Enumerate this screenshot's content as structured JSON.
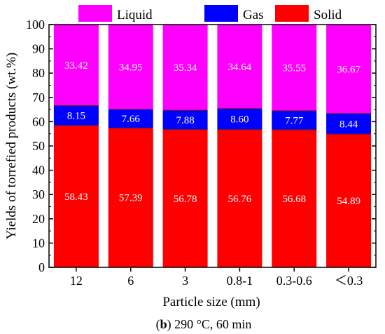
{
  "chart_data": {
    "type": "bar",
    "stacked": true,
    "categories": [
      "12",
      "6",
      "3",
      "0.8-1",
      "0.3-0.6",
      "＜0.3"
    ],
    "series": [
      {
        "name": "Solid",
        "color": "#ff0000",
        "values": [
          58.43,
          57.39,
          56.78,
          56.76,
          56.68,
          54.89
        ]
      },
      {
        "name": "Gas",
        "color": "#0000ff",
        "values": [
          8.15,
          7.66,
          7.88,
          8.6,
          7.77,
          8.44
        ]
      },
      {
        "name": "Liquid",
        "color": "#ff00ff",
        "values": [
          33.42,
          34.95,
          35.34,
          34.64,
          35.55,
          36.67
        ]
      }
    ],
    "value_labels": {
      "Solid": [
        "58.43",
        "57.39",
        "56.78",
        "56.76",
        "56.68",
        "54.89"
      ],
      "Gas": [
        "8.15",
        "7.66",
        "7.88",
        "8.60",
        "7.77",
        "8.44"
      ],
      "Liquid": [
        "33.42",
        "34.95",
        "35.34",
        "34.64",
        "35.55",
        "36.67"
      ]
    },
    "xlabel": "Particle size (mm)",
    "ylabel": "Yields of torrefied products (wt.%)",
    "ylim": [
      0,
      100
    ],
    "yticks": [
      0,
      10,
      20,
      30,
      40,
      50,
      60,
      70,
      80,
      90,
      100
    ],
    "legend": {
      "position": "top",
      "order": [
        "Liquid",
        "Gas",
        "Solid"
      ]
    },
    "grid": false,
    "caption": {
      "bold": "b",
      "text": " 290 °C, 60 min"
    }
  }
}
